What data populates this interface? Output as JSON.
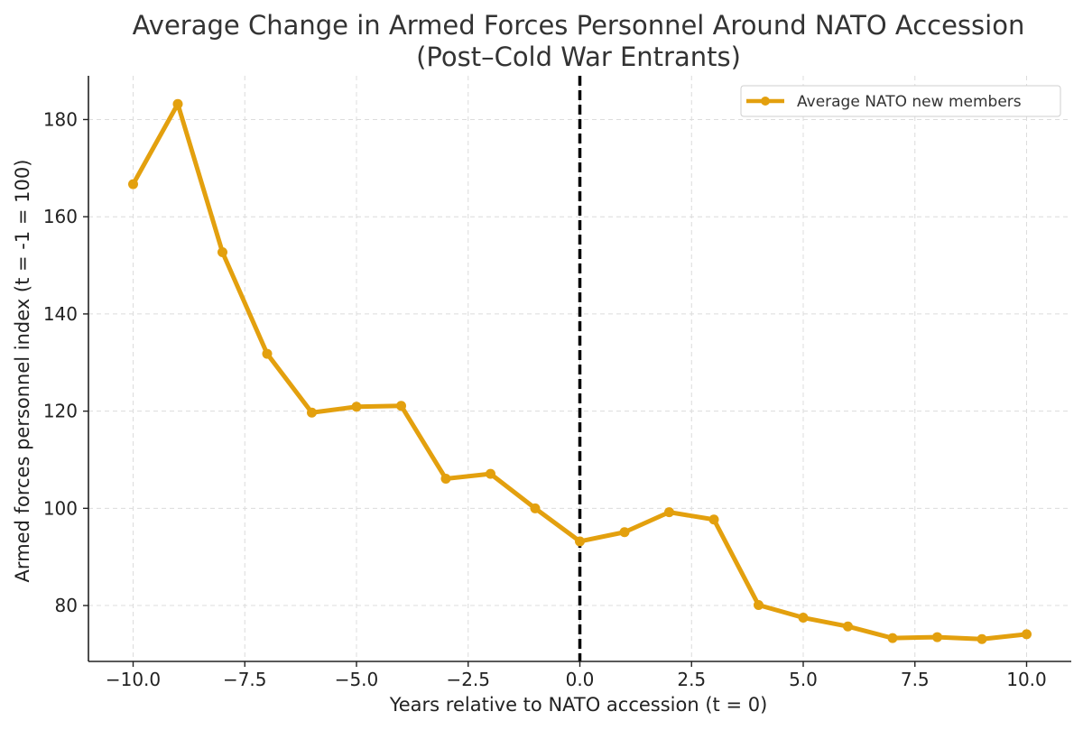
{
  "chart_data": {
    "type": "line",
    "title_line1": "Average Change in Armed Forces Personnel Around NATO Accession",
    "title_line2": "(Post–Cold War Entrants)",
    "xlabel": "Years relative to NATO accession (t = 0)",
    "ylabel": "Armed forces personnel index (t = -1 = 100)",
    "xlim": [
      -11,
      11
    ],
    "ylim": [
      68.5,
      189
    ],
    "x_ticks": [
      -10.0,
      -7.5,
      -5.0,
      -2.5,
      0.0,
      2.5,
      5.0,
      7.5,
      10.0
    ],
    "x_tick_labels": [
      "−10.0",
      "−7.5",
      "−5.0",
      "−2.5",
      "0.0",
      "2.5",
      "5.0",
      "7.5",
      "10.0"
    ],
    "y_ticks": [
      80,
      100,
      120,
      140,
      160,
      180
    ],
    "y_tick_labels": [
      "80",
      "100",
      "120",
      "140",
      "160",
      "180"
    ],
    "grid": true,
    "legend_position": "top-right",
    "accession_line_x": 0,
    "series": [
      {
        "name": "Average NATO new members",
        "color": "#E3A00E",
        "x": [
          -10,
          -9,
          -8,
          -7,
          -6,
          -5,
          -4,
          -3,
          -2,
          -1,
          0,
          1,
          2,
          3,
          4,
          5,
          6,
          7,
          8,
          9,
          10
        ],
        "values": [
          166.7,
          183.2,
          152.7,
          131.8,
          119.7,
          120.9,
          121.1,
          106.1,
          107.1,
          100.0,
          93.2,
          95.1,
          99.2,
          97.7,
          80.1,
          77.5,
          75.7,
          73.3,
          73.5,
          73.1,
          74.1
        ]
      }
    ]
  }
}
